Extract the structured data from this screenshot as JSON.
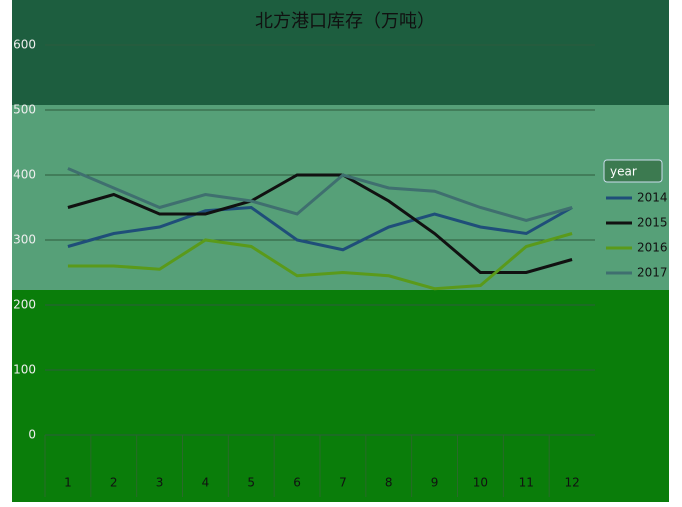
{
  "chart_data": {
    "type": "line",
    "title": "北方港口库存（万吨）",
    "categories": [
      "1",
      "2",
      "3",
      "4",
      "5",
      "6",
      "7",
      "8",
      "9",
      "10",
      "11",
      "12"
    ],
    "series": [
      {
        "name": "2014",
        "color": "#1f4e79",
        "values": [
          290,
          310,
          320,
          345,
          350,
          300,
          285,
          320,
          340,
          320,
          310,
          350
        ]
      },
      {
        "name": "2015",
        "color": "#111111",
        "values": [
          350,
          370,
          340,
          340,
          360,
          400,
          400,
          360,
          310,
          250,
          250,
          270
        ]
      },
      {
        "name": "2016",
        "color": "#5a9a1a",
        "values": [
          260,
          260,
          255,
          300,
          290,
          245,
          250,
          245,
          225,
          230,
          290,
          310
        ]
      },
      {
        "name": "2017",
        "color": "#3f6f6f",
        "values": [
          410,
          380,
          350,
          370,
          360,
          340,
          400,
          380,
          375,
          350,
          330,
          350
        ]
      }
    ],
    "legend_title": "year",
    "ylim": [
      0,
      600
    ],
    "yticks": [
      0,
      100,
      200,
      300,
      400,
      500,
      600
    ],
    "grid": true
  }
}
